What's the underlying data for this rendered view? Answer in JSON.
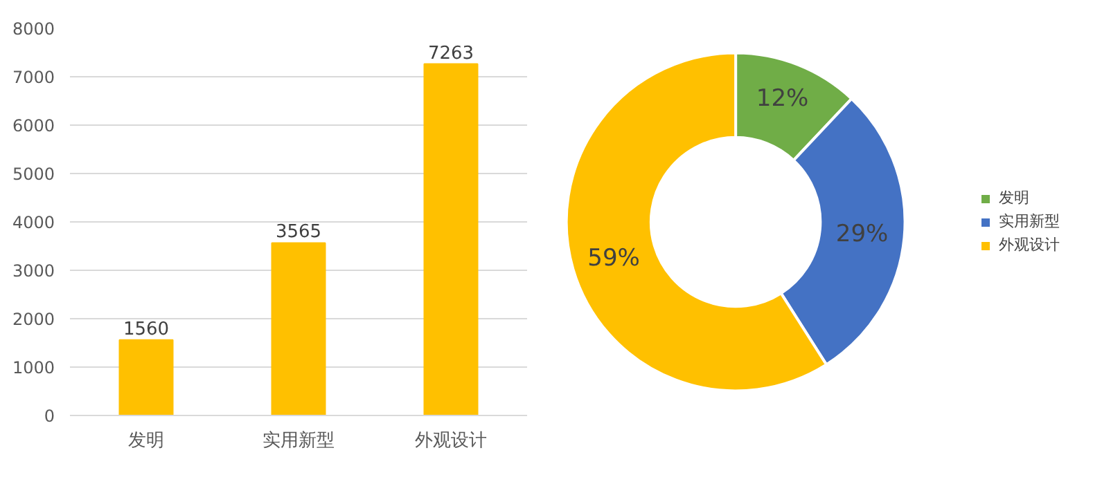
{
  "chart_data": [
    {
      "type": "bar",
      "categories": [
        "发明",
        "实用新型",
        "外观设计"
      ],
      "values": [
        1560,
        3565,
        7263
      ],
      "color": "#ffc000",
      "ylim": [
        0,
        8000
      ],
      "yticks": [
        0,
        1000,
        2000,
        3000,
        4000,
        5000,
        6000,
        7000,
        8000
      ],
      "grid": "y",
      "data_labels": true
    },
    {
      "type": "donut",
      "categories": [
        "发明",
        "实用新型",
        "外观设计"
      ],
      "values": [
        12,
        29,
        59
      ],
      "colors": [
        "#70ad47",
        "#4472c4",
        "#ffc000"
      ],
      "value_labels": [
        "12%",
        "29%",
        "59%"
      ],
      "legend": "right"
    }
  ]
}
